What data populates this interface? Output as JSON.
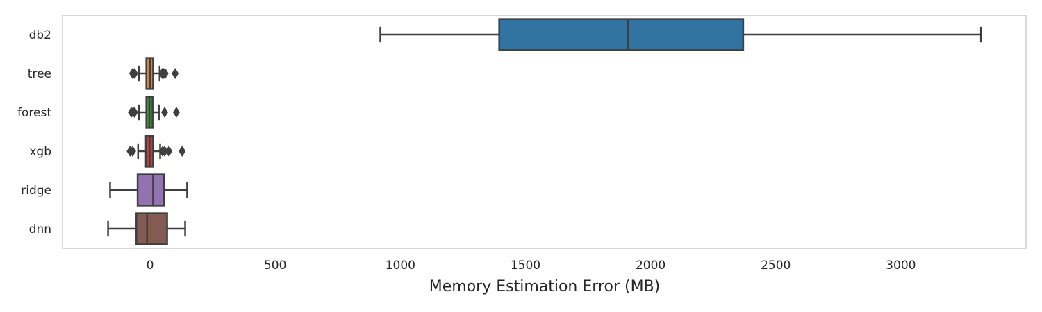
{
  "chart_data": {
    "type": "boxplot",
    "orientation": "horizontal",
    "title": "",
    "xlabel": "Memory Estimation Error (MB)",
    "ylabel": "",
    "xlim": [
      -350,
      3500
    ],
    "xticks": [
      0,
      500,
      1000,
      1500,
      2000,
      2500,
      3000
    ],
    "grid": false,
    "series": [
      {
        "name": "db2",
        "color": "#3274a1",
        "whisker_low": 920,
        "q1": 1395,
        "median": 1910,
        "q3": 2370,
        "whisker_high": 3320,
        "outliers": []
      },
      {
        "name": "tree",
        "color": "#e1812c",
        "whisker_low": -45,
        "q1": -15,
        "median": 0,
        "q3": 12,
        "whisker_high": 38,
        "outliers": [
          -70,
          -62,
          48,
          55,
          60,
          100
        ]
      },
      {
        "name": "forest",
        "color": "#3a923a",
        "whisker_low": -45,
        "q1": -15,
        "median": -3,
        "q3": 10,
        "whisker_high": 35,
        "outliers": [
          -75,
          -68,
          -62,
          58,
          105
        ]
      },
      {
        "name": "xgb",
        "color": "#c03d3e",
        "whisker_low": -48,
        "q1": -17,
        "median": -2,
        "q3": 12,
        "whisker_high": 40,
        "outliers": [
          -80,
          -70,
          50,
          58,
          75,
          128
        ]
      },
      {
        "name": "ridge",
        "color": "#9372b2",
        "whisker_low": -160,
        "q1": -50,
        "median": 12,
        "q3": 55,
        "whisker_high": 148,
        "outliers": []
      },
      {
        "name": "dnn",
        "color": "#845b53",
        "whisker_low": -168,
        "q1": -55,
        "median": -12,
        "q3": 68,
        "whisker_high": 140,
        "outliers": []
      }
    ]
  }
}
